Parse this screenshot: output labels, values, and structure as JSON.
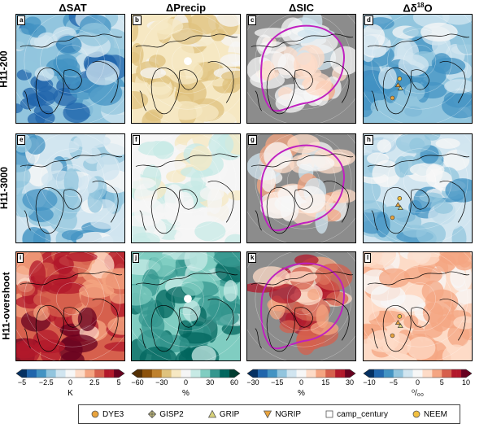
{
  "columns": [
    {
      "title_main": "ΔSAT",
      "title_sup": "",
      "title_after": ""
    },
    {
      "title_main": "ΔPrecip",
      "title_sup": "",
      "title_after": ""
    },
    {
      "title_main": "ΔSIC",
      "title_sup": "",
      "title_after": ""
    },
    {
      "title_main": "Δδ",
      "title_sup": "18",
      "title_after": "O"
    }
  ],
  "rows": [
    "H11-200",
    "H11-3000",
    "H11-overshoot"
  ],
  "panel_letters": [
    "a",
    "b",
    "c",
    "d",
    "e",
    "f",
    "g",
    "h",
    "i",
    "j",
    "k",
    "l"
  ],
  "colorbars": [
    {
      "unit": "K",
      "ticks": [
        "−5",
        "−2.5",
        "0",
        "2.5",
        "5"
      ],
      "range": [
        -5,
        5
      ],
      "scheme": "rdbu"
    },
    {
      "unit": "%",
      "ticks": [
        "−60",
        "−30",
        "0",
        "30",
        "60"
      ],
      "range": [
        -60,
        60
      ],
      "scheme": "brbg"
    },
    {
      "unit": "%",
      "ticks": [
        "−30",
        "−15",
        "0",
        "15",
        "30"
      ],
      "range": [
        -30,
        30
      ],
      "scheme": "rdbu"
    },
    {
      "unit": "⁰/₀₀",
      "ticks": [
        "−10",
        "−5",
        "0",
        "5",
        "10"
      ],
      "range": [
        -10,
        10
      ],
      "scheme": "rdbu"
    }
  ],
  "legend": [
    {
      "label": "DYE3",
      "icon": "circle-icon",
      "color": "#e8a33d"
    },
    {
      "label": "GISP2",
      "icon": "diamond-cross-icon",
      "color": "#c8c07a"
    },
    {
      "label": "GRIP",
      "icon": "triangle-up-icon",
      "color": "#d8d27a"
    },
    {
      "label": "NGRIP",
      "icon": "triangle-down-icon",
      "color": "#e8a33d"
    },
    {
      "label": "camp_century",
      "icon": "square-icon",
      "color": "#ffffff"
    },
    {
      "label": "NEEM",
      "icon": "circle-icon",
      "color": "#f2c040"
    }
  ],
  "colors": {
    "sea_ice_contour": "#c020c0",
    "land_mask_grey": "#8c8c8c"
  }
}
